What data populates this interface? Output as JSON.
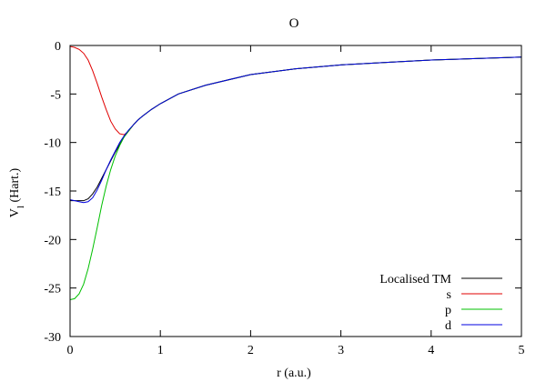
{
  "chart_data": {
    "type": "line",
    "title": "O",
    "xlabel": "r (a.u.)",
    "ylabel_main": "V",
    "ylabel_sub": "l",
    "ylabel_rest": " (Hart.)",
    "xlim": [
      0,
      5
    ],
    "ylim": [
      -30,
      0
    ],
    "xticks": [
      0,
      1,
      2,
      3,
      4,
      5
    ],
    "yticks": [
      0,
      -5,
      -10,
      -15,
      -20,
      -25,
      -30
    ],
    "grid": false,
    "legend_position": "bottom-right",
    "series": [
      {
        "name": "Localised TM",
        "color": "#000000",
        "x": [
          0,
          0.05,
          0.1,
          0.15,
          0.2,
          0.25,
          0.3,
          0.35,
          0.4,
          0.45,
          0.5,
          0.55,
          0.6,
          0.65,
          0.7,
          0.75,
          0.8,
          0.9,
          1.0,
          1.2,
          1.5,
          2.0,
          2.5,
          3.0,
          3.5,
          4.0,
          4.5,
          5.0
        ],
        "y": [
          -16.0,
          -16.0,
          -16.0,
          -16.0,
          -15.8,
          -15.3,
          -14.6,
          -13.7,
          -12.8,
          -11.9,
          -11.0,
          -10.2,
          -9.4,
          -8.8,
          -8.2,
          -7.7,
          -7.3,
          -6.6,
          -6.0,
          -5.0,
          -4.1,
          -3.0,
          -2.4,
          -2.0,
          -1.75,
          -1.5,
          -1.35,
          -1.2
        ]
      },
      {
        "name": "s",
        "color": "#e00000",
        "x": [
          0,
          0.05,
          0.1,
          0.15,
          0.2,
          0.25,
          0.3,
          0.35,
          0.4,
          0.45,
          0.5,
          0.55,
          0.6,
          0.65,
          0.7,
          0.75,
          0.8,
          0.9,
          1.0,
          1.2,
          1.5,
          2.0,
          2.5,
          3.0,
          3.5,
          4.0,
          4.5,
          5.0
        ],
        "y": [
          -0.1,
          -0.2,
          -0.4,
          -0.8,
          -1.5,
          -2.6,
          -3.9,
          -5.3,
          -6.6,
          -7.8,
          -8.6,
          -9.1,
          -9.2,
          -8.8,
          -8.2,
          -7.7,
          -7.3,
          -6.6,
          -6.0,
          -5.0,
          -4.1,
          -3.0,
          -2.4,
          -2.0,
          -1.75,
          -1.5,
          -1.35,
          -1.2
        ]
      },
      {
        "name": "p",
        "color": "#00c000",
        "x": [
          0,
          0.05,
          0.1,
          0.15,
          0.2,
          0.25,
          0.3,
          0.35,
          0.4,
          0.45,
          0.5,
          0.55,
          0.6,
          0.65,
          0.7,
          0.75,
          0.8,
          0.9,
          1.0,
          1.2,
          1.5,
          2.0,
          2.5,
          3.0,
          3.5,
          4.0,
          4.5,
          5.0
        ],
        "y": [
          -26.2,
          -26.1,
          -25.6,
          -24.6,
          -23.0,
          -21.0,
          -18.8,
          -16.5,
          -14.5,
          -12.8,
          -11.4,
          -10.3,
          -9.4,
          -8.8,
          -8.2,
          -7.7,
          -7.3,
          -6.6,
          -6.0,
          -5.0,
          -4.1,
          -3.0,
          -2.4,
          -2.0,
          -1.75,
          -1.5,
          -1.35,
          -1.2
        ]
      },
      {
        "name": "d",
        "color": "#0000e0",
        "x": [
          0,
          0.05,
          0.1,
          0.15,
          0.2,
          0.25,
          0.3,
          0.35,
          0.4,
          0.45,
          0.5,
          0.55,
          0.6,
          0.65,
          0.7,
          0.75,
          0.8,
          0.9,
          1.0,
          1.2,
          1.5,
          2.0,
          2.5,
          3.0,
          3.5,
          4.0,
          4.5,
          5.0
        ],
        "y": [
          -15.9,
          -16.0,
          -16.1,
          -16.2,
          -16.1,
          -15.7,
          -14.9,
          -13.9,
          -12.8,
          -11.8,
          -10.9,
          -10.0,
          -9.3,
          -8.7,
          -8.2,
          -7.7,
          -7.3,
          -6.6,
          -6.0,
          -5.0,
          -4.1,
          -3.0,
          -2.4,
          -2.0,
          -1.75,
          -1.5,
          -1.35,
          -1.2
        ]
      }
    ]
  }
}
